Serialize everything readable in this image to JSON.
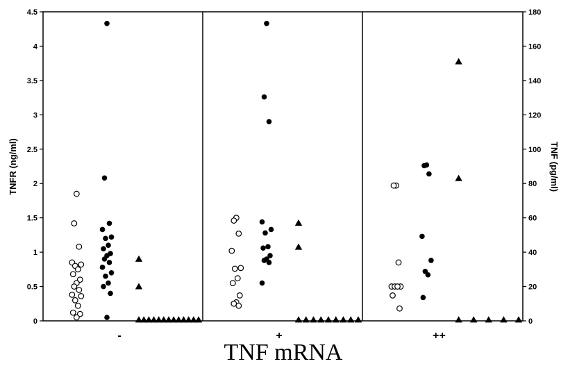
{
  "chart_data": {
    "type": "scatter",
    "xlabel": "TNF mRNA",
    "ylabel_left": "TNFR (ng/ml)",
    "ylabel_right": "TNF (pg/ml)",
    "ylim_left": [
      0,
      4.5
    ],
    "ylim_right": [
      0,
      180
    ],
    "left_ticks": [
      "0",
      "0.5",
      "1",
      "1.5",
      "2",
      "2.5",
      "3",
      "3.5",
      "4",
      "4.5"
    ],
    "right_ticks": [
      "0",
      "20",
      "40",
      "60",
      "80",
      "100",
      "120",
      "140",
      "160",
      "180"
    ],
    "categories": [
      "-",
      "+",
      "++"
    ],
    "groups": [
      {
        "label": "-",
        "open_circles": [
          1.85,
          1.42,
          1.08,
          0.85,
          0.82,
          0.8,
          0.75,
          0.68,
          0.6,
          0.55,
          0.5,
          0.45,
          0.38,
          0.36,
          0.3,
          0.22,
          0.12,
          0.1,
          0.05
        ],
        "filled_circles": [
          4.33,
          2.08,
          1.42,
          1.33,
          1.22,
          1.2,
          1.1,
          1.05,
          0.98,
          0.95,
          0.9,
          0.85,
          0.78,
          0.7,
          0.65,
          0.55,
          0.5,
          0.4,
          0.05
        ],
        "triangles_tnf": [
          36,
          20
        ],
        "undetectable_tnf_count": 13
      },
      {
        "label": "+",
        "open_circles": [
          1.5,
          1.46,
          1.27,
          1.02,
          0.77,
          0.76,
          0.62,
          0.55,
          0.37,
          0.27,
          0.25,
          0.22
        ],
        "filled_circles": [
          4.33,
          3.26,
          2.9,
          1.44,
          1.33,
          1.28,
          1.08,
          1.06,
          0.95,
          0.9,
          0.88,
          0.85,
          0.55
        ],
        "triangles_tnf": [
          57,
          43
        ],
        "undetectable_tnf_count": 9
      },
      {
        "label": "++",
        "open_circles": [
          1.97,
          1.97,
          0.85,
          0.5,
          0.5,
          0.5,
          0.5,
          0.37,
          0.18
        ],
        "filled_circles": [
          2.27,
          2.26,
          2.14,
          1.23,
          0.88,
          0.72,
          0.67,
          0.34
        ],
        "triangles_tnf": [
          151,
          83
        ],
        "undetectable_tnf_count": 5
      }
    ]
  }
}
